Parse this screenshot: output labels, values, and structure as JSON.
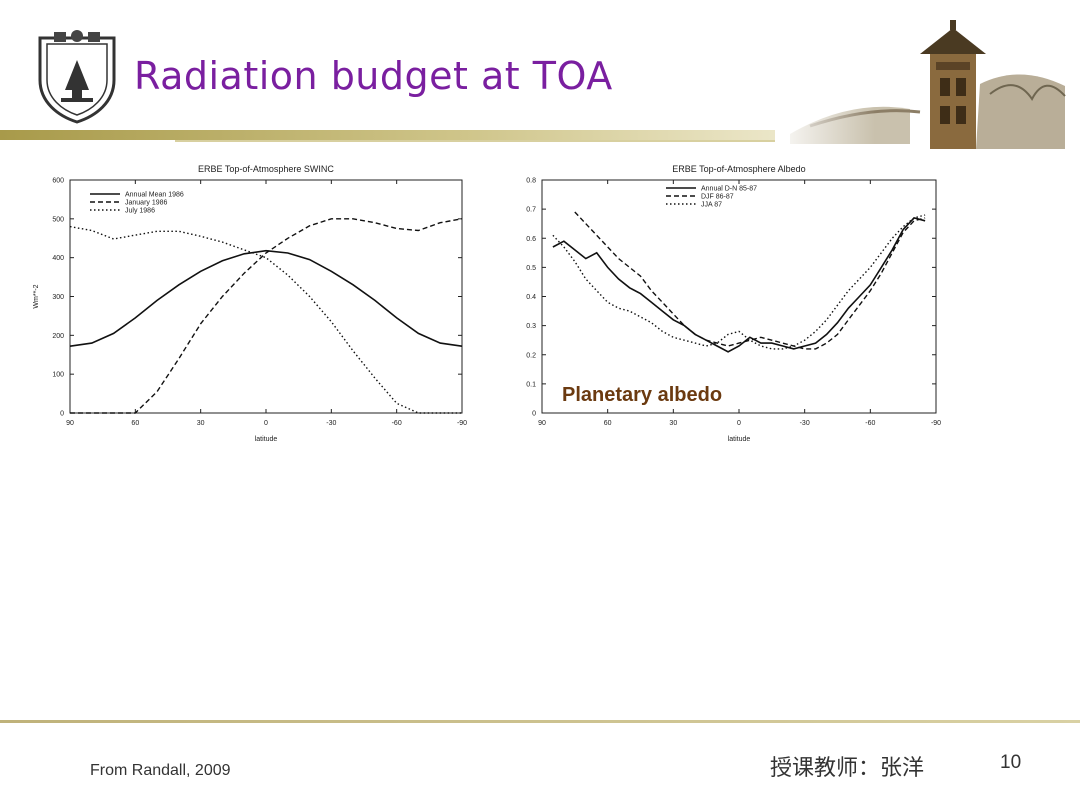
{
  "slide": {
    "title": "Radiation budget at TOA",
    "source": "From Randall, 2009",
    "teacher": "授课教师：张洋",
    "page_number": "10",
    "annotation": "Planetary albedo"
  },
  "colors": {
    "title": "#7a1fa0",
    "annotation": "#6b3a10",
    "rule": "#bfb27a"
  },
  "icons": {
    "logo": "university-seal-icon",
    "banner": "tower-building-illustration"
  },
  "chart_data": [
    {
      "type": "line",
      "title": "ERBE Top-of-Atmosphere SWINC",
      "xlabel": "latitude",
      "ylabel": "Wm**-2",
      "xlim": [
        90,
        -90
      ],
      "ylim": [
        0,
        600
      ],
      "x_ticks": [
        "90",
        "60",
        "30",
        "0",
        "-30",
        "-60",
        "-90"
      ],
      "y_ticks": [
        "0",
        "100",
        "200",
        "300",
        "400",
        "500",
        "600"
      ],
      "legend_position": "top-left",
      "grid": false,
      "x": [
        90,
        80,
        70,
        60,
        50,
        40,
        30,
        20,
        10,
        0,
        -10,
        -20,
        -30,
        -40,
        -50,
        -60,
        -70,
        -80,
        -90
      ],
      "series": [
        {
          "name": "Annual Mean 1986",
          "style": "solid",
          "values": [
            172,
            180,
            205,
            245,
            290,
            330,
            365,
            392,
            410,
            418,
            412,
            395,
            365,
            330,
            290,
            245,
            205,
            180,
            172
          ]
        },
        {
          "name": "January 1986",
          "style": "dashed",
          "values": [
            0,
            0,
            0,
            0,
            55,
            140,
            230,
            300,
            360,
            412,
            450,
            482,
            500,
            500,
            490,
            475,
            470,
            490,
            500
          ]
        },
        {
          "name": "July 1986",
          "style": "dotted",
          "values": [
            480,
            470,
            448,
            458,
            468,
            468,
            455,
            440,
            420,
            400,
            355,
            300,
            235,
            160,
            90,
            25,
            0,
            0,
            0
          ]
        }
      ]
    },
    {
      "type": "line",
      "title": "ERBE Top-of-Atmosphere Albedo",
      "xlabel": "latitude",
      "ylabel": "",
      "xlim": [
        90,
        -90
      ],
      "ylim": [
        0,
        0.8
      ],
      "x_ticks": [
        "90",
        "60",
        "30",
        "0",
        "-30",
        "-60",
        "-90"
      ],
      "y_ticks": [
        "0",
        "0.1",
        "0.2",
        "0.3",
        "0.4",
        "0.5",
        "0.6",
        "0.7",
        "0.8"
      ],
      "legend_position": "top-right",
      "grid": false,
      "x": [
        85,
        80,
        75,
        70,
        65,
        60,
        55,
        50,
        45,
        40,
        35,
        30,
        25,
        20,
        15,
        10,
        5,
        0,
        -5,
        -10,
        -15,
        -20,
        -25,
        -30,
        -35,
        -40,
        -45,
        -50,
        -55,
        -60,
        -65,
        -70,
        -75,
        -80,
        -85
      ],
      "series": [
        {
          "name": "Annual D-N 85-87",
          "style": "solid",
          "values": [
            0.57,
            0.59,
            0.56,
            0.53,
            0.55,
            0.5,
            0.46,
            0.43,
            0.41,
            0.38,
            0.35,
            0.32,
            0.3,
            0.27,
            0.25,
            0.23,
            0.21,
            0.23,
            0.26,
            0.24,
            0.24,
            0.23,
            0.22,
            0.23,
            0.24,
            0.27,
            0.31,
            0.36,
            0.4,
            0.44,
            0.5,
            0.56,
            0.63,
            0.67,
            0.66
          ]
        },
        {
          "name": "DJF 86-87",
          "style": "dashed",
          "values": [
            null,
            null,
            0.69,
            0.65,
            0.61,
            0.57,
            0.53,
            0.5,
            0.47,
            0.42,
            0.38,
            0.34,
            0.3,
            0.27,
            0.25,
            0.24,
            0.23,
            0.24,
            0.25,
            0.26,
            0.25,
            0.24,
            0.23,
            0.22,
            0.22,
            0.24,
            0.27,
            0.32,
            0.37,
            0.42,
            0.48,
            0.55,
            0.62,
            0.66,
            0.67
          ]
        },
        {
          "name": "JJA 87",
          "style": "dotted",
          "values": [
            0.61,
            0.57,
            0.52,
            0.46,
            0.42,
            0.38,
            0.36,
            0.35,
            0.33,
            0.31,
            0.28,
            0.26,
            0.25,
            0.24,
            0.23,
            0.24,
            0.27,
            0.28,
            0.25,
            0.23,
            0.22,
            0.22,
            0.23,
            0.25,
            0.28,
            0.32,
            0.37,
            0.42,
            0.46,
            0.5,
            0.55,
            0.6,
            0.64,
            0.67,
            0.68
          ]
        }
      ]
    }
  ]
}
